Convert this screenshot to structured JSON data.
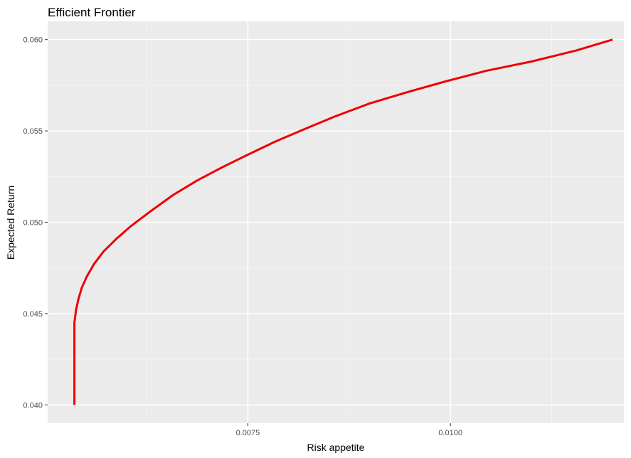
{
  "chart_data": {
    "type": "line",
    "title": "Efficient Frontier",
    "xlabel": "Risk appetite",
    "ylabel": "Expected Return",
    "xlim": [
      0.00503,
      0.01214
    ],
    "ylim": [
      0.039,
      0.061
    ],
    "x_ticks": [
      {
        "value": 0.0075,
        "label": "0.0075"
      },
      {
        "value": 0.01,
        "label": "0.0100"
      }
    ],
    "x_minor_ticks": [
      0.00625,
      0.00875,
      0.01125
    ],
    "y_ticks": [
      {
        "value": 0.04,
        "label": "0.040"
      },
      {
        "value": 0.045,
        "label": "0.045"
      },
      {
        "value": 0.05,
        "label": "0.050"
      },
      {
        "value": 0.055,
        "label": "0.055"
      },
      {
        "value": 0.06,
        "label": "0.060"
      }
    ],
    "y_minor_ticks": [
      0.0425,
      0.0475,
      0.0525,
      0.0575
    ],
    "grid": true,
    "legend": "none",
    "series": [
      {
        "color": "#ee0000",
        "x": [
          0.00536,
          0.00536,
          0.00536,
          0.00538,
          0.00541,
          0.00545,
          0.00551,
          0.0056,
          0.00572,
          0.00588,
          0.00606,
          0.0063,
          0.00658,
          0.00688,
          0.00718,
          0.0075,
          0.00783,
          0.0082,
          0.00858,
          0.009,
          0.00945,
          0.00993,
          0.01045,
          0.011,
          0.01155,
          0.012
        ],
        "y": [
          0.04,
          0.0425,
          0.0445,
          0.0452,
          0.0458,
          0.0464,
          0.047,
          0.0477,
          0.0484,
          0.0491,
          0.0498,
          0.0506,
          0.0515,
          0.0523,
          0.053,
          0.0537,
          0.0544,
          0.0551,
          0.0558,
          0.0565,
          0.0571,
          0.0577,
          0.0583,
          0.0588,
          0.0594,
          0.06
        ]
      }
    ]
  }
}
